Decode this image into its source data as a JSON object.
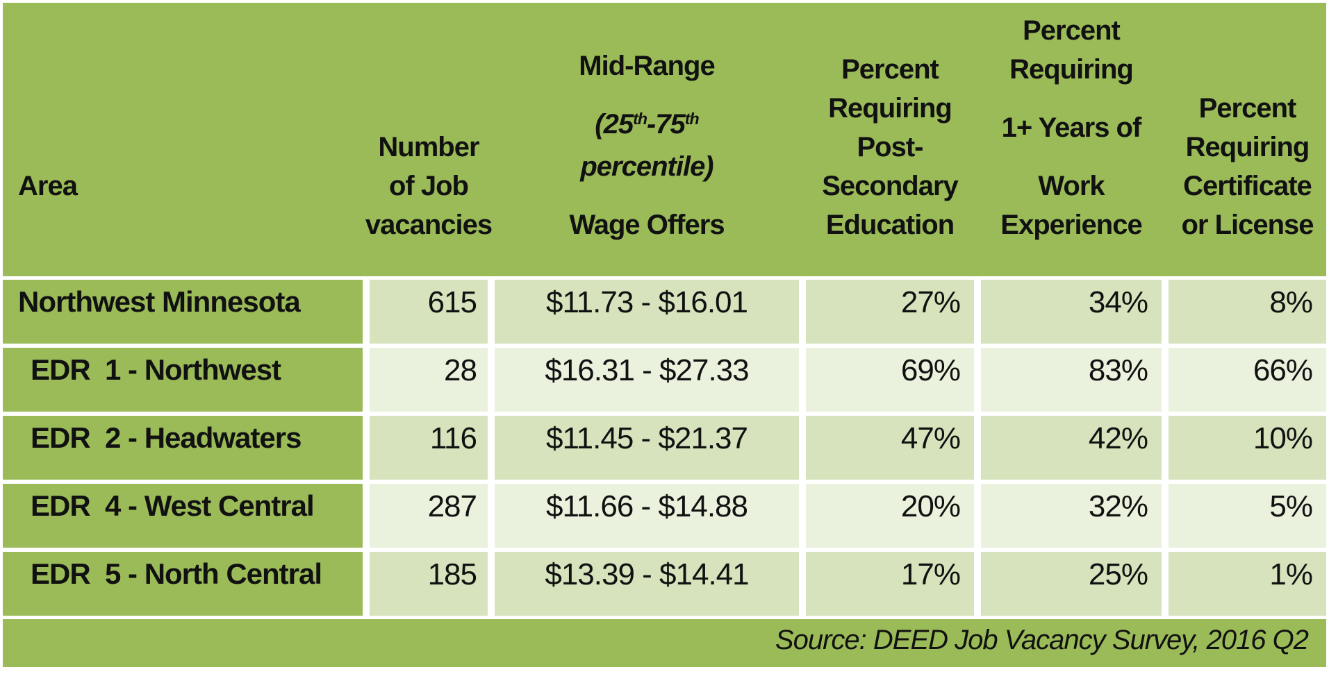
{
  "colors": {
    "table_green": "#9BBB59",
    "row_shade_dark": "#D6E3BC",
    "row_shade_light": "#EAF1DD",
    "separator": "#FFFFFF",
    "text": "#111111"
  },
  "table": {
    "columns": [
      {
        "key": "area",
        "css": "area",
        "label_paragraphs": [
          [
            "Area"
          ]
        ]
      },
      {
        "key": "vacancies",
        "css": "vac",
        "label_paragraphs": [
          [
            "Number",
            "of Job",
            "vacancies"
          ]
        ]
      },
      {
        "key": "wage",
        "css": "wage",
        "label_paragraphs": [
          [
            "Mid-Range"
          ],
          [
            "(25^th^-75^th^",
            "percentile)"
          ],
          [
            "Wage Offers"
          ]
        ],
        "italic_paragraph": 1
      },
      {
        "key": "post_secondary",
        "css": "edu",
        "label_paragraphs": [
          [
            "Percent",
            "Requiring",
            "Post-",
            "Secondary",
            "Education"
          ]
        ]
      },
      {
        "key": "experience",
        "css": "exp",
        "label_paragraphs": [
          [
            "Percent",
            "Requiring"
          ],
          [
            "1+ Years of"
          ],
          [
            "Work",
            "Experience"
          ]
        ]
      },
      {
        "key": "license",
        "css": "lic",
        "label_paragraphs": [
          [
            "Percent",
            "Requiring",
            "Certificate",
            "or License"
          ]
        ]
      }
    ],
    "rows": [
      {
        "area": "Northwest Minnesota",
        "indent": false,
        "vacancies": "615",
        "wage": "$11.73 - $16.01",
        "post_secondary": "27%",
        "experience": "34%",
        "license": "8%"
      },
      {
        "area": "EDR  1 - Northwest",
        "indent": true,
        "vacancies": "28",
        "wage": "$16.31 - $27.33",
        "post_secondary": "69%",
        "experience": "83%",
        "license": "66%"
      },
      {
        "area": "EDR  2 - Headwaters",
        "indent": true,
        "vacancies": "116",
        "wage": "$11.45 - $21.37",
        "post_secondary": "47%",
        "experience": "42%",
        "license": "10%"
      },
      {
        "area": "EDR  4 - West Central",
        "indent": true,
        "vacancies": "287",
        "wage": "$11.66 - $14.88",
        "post_secondary": "20%",
        "experience": "32%",
        "license": "5%"
      },
      {
        "area": "EDR  5 - North Central",
        "indent": true,
        "vacancies": "185",
        "wage": "$13.39 - $14.41",
        "post_secondary": "17%",
        "experience": "25%",
        "license": "1%"
      }
    ],
    "source": "Source: DEED Job Vacancy Survey, 2016 Q2"
  },
  "chart_data": {
    "type": "table",
    "columns": [
      "Area",
      "Number of Job vacancies",
      "Mid-Range (25th-75th percentile) Wage Offers",
      "Percent Requiring Post-Secondary Education",
      "Percent Requiring 1+ Years of Work Experience",
      "Percent Requiring Certificate or License"
    ],
    "rows": [
      [
        "Northwest Minnesota",
        615,
        "$11.73 - $16.01",
        "27%",
        "34%",
        "8%"
      ],
      [
        "EDR 1 - Northwest",
        28,
        "$16.31 - $27.33",
        "69%",
        "83%",
        "66%"
      ],
      [
        "EDR 2 - Headwaters",
        116,
        "$11.45 - $21.37",
        "47%",
        "42%",
        "10%"
      ],
      [
        "EDR 4 - West Central",
        287,
        "$11.66 - $14.88",
        "20%",
        "32%",
        "5%"
      ],
      [
        "EDR 5 - North Central",
        185,
        "$13.39 - $14.41",
        "17%",
        "25%",
        "1%"
      ]
    ],
    "source": "Source: DEED Job Vacancy Survey, 2016 Q2"
  }
}
